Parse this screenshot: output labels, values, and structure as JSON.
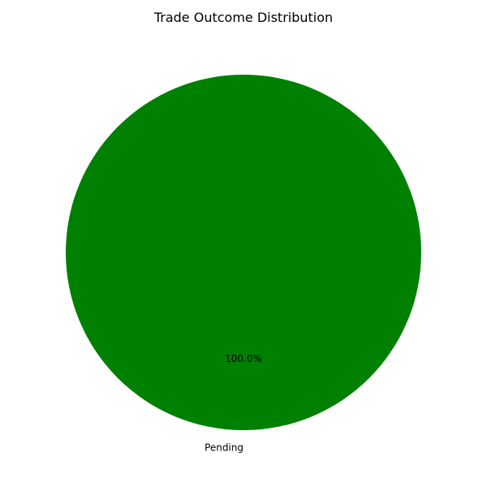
{
  "chart_data": {
    "type": "pie",
    "title": "Trade Outcome Distribution",
    "slices": [
      {
        "label": "Pending",
        "value": 100.0,
        "percent_label": "100.0%",
        "color": "#008000"
      }
    ]
  }
}
